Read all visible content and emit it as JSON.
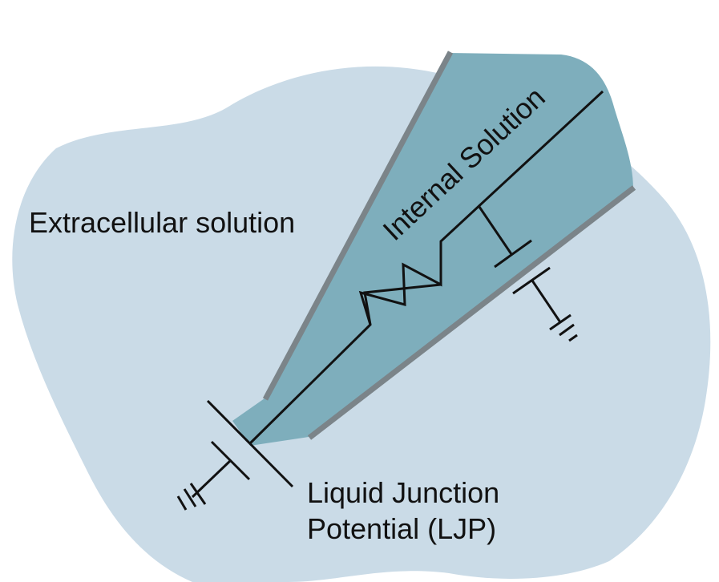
{
  "labels": {
    "extracellular": "Extracellular solution",
    "internal": "Internal Solution",
    "ljp_line1": "Liquid Junction",
    "ljp_line2": "Potential (LJP)"
  },
  "colors": {
    "bath": "#cadbe7",
    "pipette_fill": "#7eaebc",
    "pipette_wall": "#7b8489",
    "wire": "#111111",
    "background": "#ffffff"
  }
}
